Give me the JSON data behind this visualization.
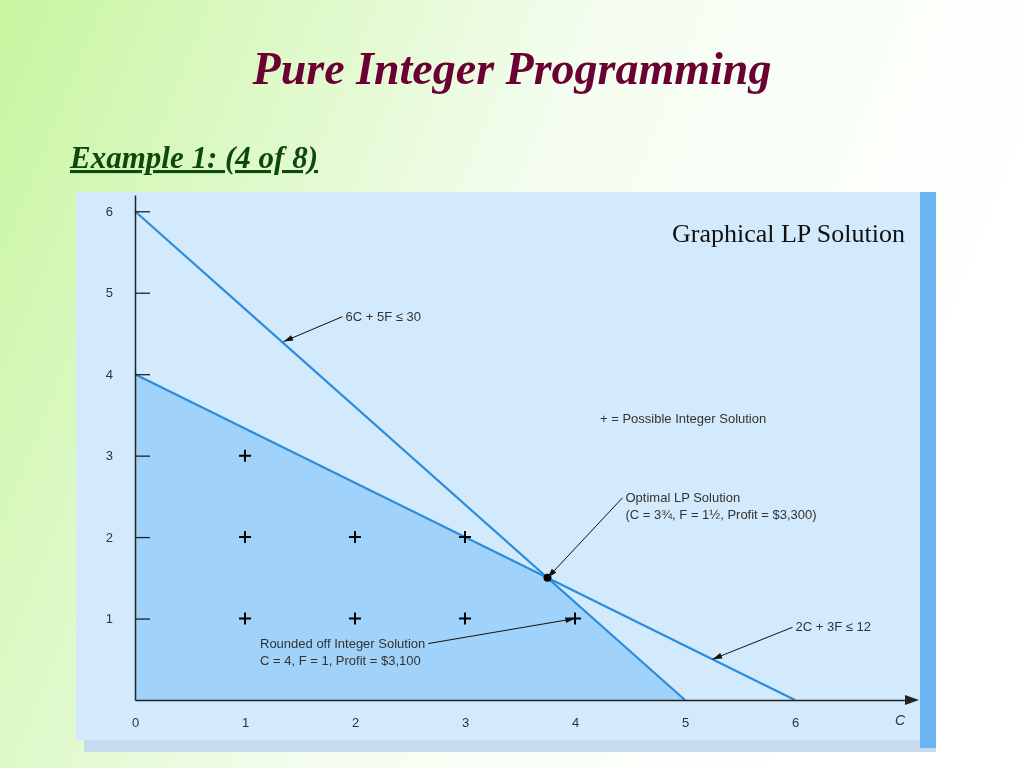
{
  "chart_data": {
    "type": "line",
    "title": "Pure Integer Programming",
    "subtitle": "Example 1: (4 of 8)",
    "xlabel": "C",
    "xlim": [
      0,
      7
    ],
    "ylim": [
      0,
      6.2
    ],
    "xticks": [
      0,
      1,
      2,
      3,
      4,
      5,
      6
    ],
    "yticks": [
      1,
      2,
      3,
      4,
      5,
      6
    ],
    "grid": false,
    "series": [
      {
        "type": "area",
        "color": "#a0d2fa",
        "x": [
          0,
          3.75,
          5
        ],
        "values": [
          4,
          1.5,
          0
        ]
      },
      {
        "color": "#2a8de0",
        "x": [
          0,
          5
        ],
        "values": [
          6,
          0
        ]
      },
      {
        "color": "#2a8de0",
        "x": [
          0,
          6
        ],
        "values": [
          4,
          0
        ]
      },
      {
        "type": "scatter",
        "marker": "cross",
        "color": "#000000",
        "x": [
          1,
          2,
          3,
          4,
          1,
          2,
          3,
          1
        ],
        "values": [
          1,
          1,
          1,
          1,
          2,
          2,
          2,
          3
        ]
      },
      {
        "type": "scatter",
        "marker": "circle",
        "color": "#000000",
        "x": [
          3.75
        ],
        "values": [
          1.5
        ]
      }
    ],
    "annotations": [
      {
        "text": "6C + 5F ≤ 30",
        "x": 1.35,
        "y": 4.4
      },
      {
        "text": "Optimal LP Solution\n(C = 3¾, F = 1½, Profit = $3,300)",
        "x": 3.75,
        "y": 1.5
      },
      {
        "text": "Rounded off Integer Solution\nC = 4, F = 1, Profit = $3,100",
        "x": 4,
        "y": 1
      },
      {
        "text": "2C + 3F ≤ 12",
        "x": 5.25,
        "y": 0.5
      },
      "+ = Possible Integer Solution",
      "Graphical LP Solution"
    ]
  }
}
